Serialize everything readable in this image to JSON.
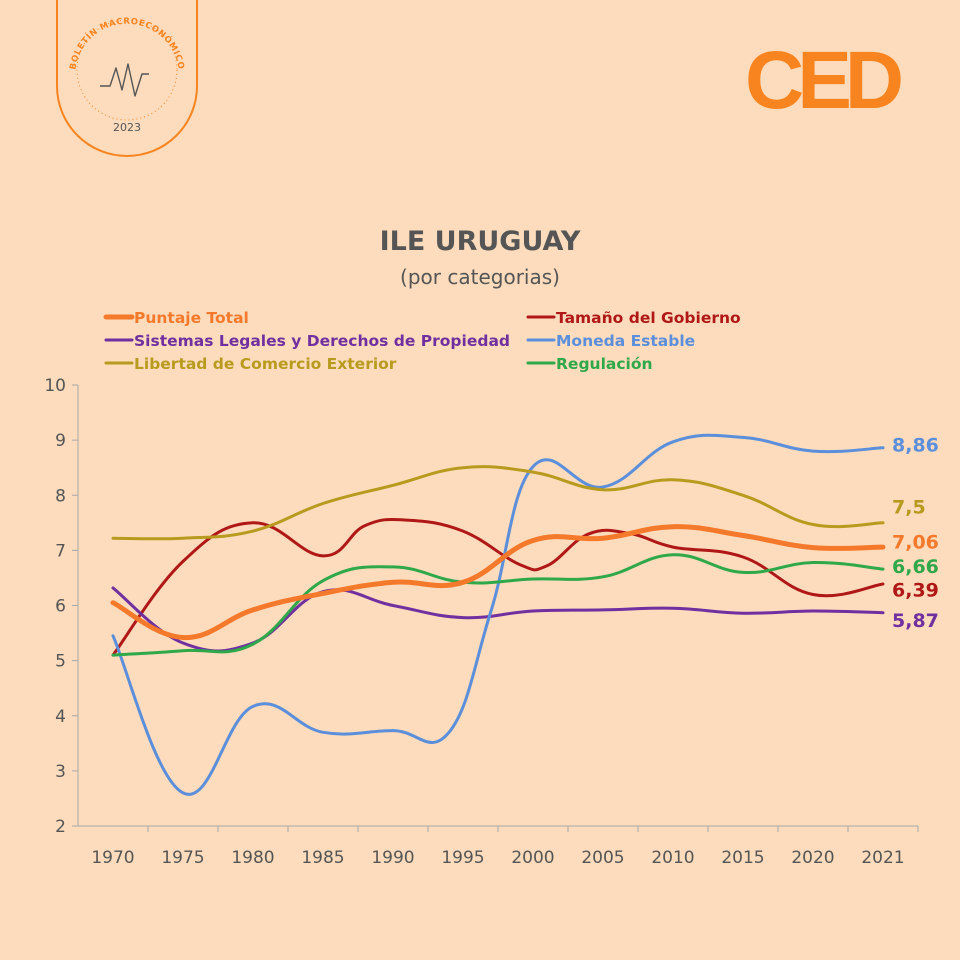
{
  "stamp": {
    "text": "BOLETÍN MACROECONÓMICO",
    "year": "2023"
  },
  "logo": {
    "text": "CED"
  },
  "colors": {
    "background": "#fcdcbc",
    "accent": "#f7841f",
    "axis": "#a8a8a8",
    "text": "#555555"
  },
  "chart_data": {
    "type": "line",
    "title": "ILE URUGUAY",
    "subtitle": "(por categorias)",
    "categories": [
      "1970",
      "1975",
      "1980",
      "1985",
      "1990",
      "1995",
      "2000",
      "2005",
      "2010",
      "2015",
      "2020",
      "2021"
    ],
    "x": [
      1970,
      1975,
      1980,
      1985,
      1990,
      1995,
      2000,
      2005,
      2010,
      2015,
      2020,
      2021
    ],
    "ylim": [
      2,
      10
    ],
    "yticks": [
      "2",
      "3",
      "4",
      "5",
      "6",
      "7",
      "8",
      "9",
      "10"
    ],
    "series": [
      {
        "name": "Puntaje Total",
        "color": "#f4792b",
        "width": 5,
        "x": [
          1970,
          1975,
          1980,
          1985,
          1990,
          1995,
          2000,
          2005,
          2010,
          2015,
          2020,
          2021
        ],
        "values": [
          6.05,
          5.42,
          5.92,
          6.22,
          6.42,
          6.42,
          7.18,
          7.22,
          7.43,
          7.27,
          7.05,
          7.06
        ],
        "end_label": "7,06",
        "label_y": 7.16
      },
      {
        "name": "Tamaño del Gobierno",
        "color": "#b01818",
        "width": 3,
        "x": [
          1970,
          1975,
          1980,
          1985,
          1988,
          1991,
          1995,
          1999,
          2001,
          2004,
          2007,
          2010,
          2015,
          2020,
          2021
        ],
        "values": [
          5.1,
          6.8,
          7.5,
          6.9,
          7.45,
          7.55,
          7.35,
          6.75,
          6.72,
          7.3,
          7.3,
          7.06,
          6.88,
          6.2,
          6.39
        ],
        "end_label": "6,39",
        "label_y": 6.29
      },
      {
        "name": "Sistemas Legales y Derechos de Propiedad",
        "color": "#7030a0",
        "width": 3,
        "x": [
          1970,
          1975,
          1980,
          1985,
          1990,
          1995,
          2000,
          2005,
          2010,
          2015,
          2020,
          2021
        ],
        "values": [
          6.32,
          5.32,
          5.32,
          6.25,
          6.0,
          5.78,
          5.9,
          5.92,
          5.95,
          5.86,
          5.9,
          5.87
        ],
        "end_label": "5,87",
        "label_y": 5.74
      },
      {
        "name": "Moneda Estable",
        "color": "#5b8fdb",
        "width": 3,
        "x": [
          1970,
          1975,
          1980,
          1985,
          1990,
          1994,
          1997,
          2000,
          2005,
          2010,
          2015,
          2020,
          2021
        ],
        "values": [
          5.45,
          2.6,
          4.17,
          3.7,
          3.73,
          3.7,
          5.9,
          8.52,
          8.15,
          8.97,
          9.05,
          8.8,
          8.86
        ],
        "end_label": "8,86",
        "label_y": 8.92
      },
      {
        "name": "Libertad de Comercio Exterior",
        "color": "#b89b1e",
        "width": 3,
        "x": [
          1970,
          1975,
          1980,
          1985,
          1990,
          1995,
          2000,
          2005,
          2010,
          2015,
          2020,
          2021
        ],
        "values": [
          7.22,
          7.22,
          7.35,
          7.85,
          8.18,
          8.5,
          8.42,
          8.1,
          8.28,
          8.0,
          7.47,
          7.5
        ],
        "end_label": "7,5",
        "label_y": 7.8
      },
      {
        "name": "Regulación",
        "color": "#2fa84a",
        "width": 3,
        "x": [
          1970,
          1975,
          1980,
          1985,
          1990,
          1995,
          2000,
          2005,
          2010,
          2015,
          2020,
          2021
        ],
        "values": [
          5.1,
          5.18,
          5.3,
          6.45,
          6.7,
          6.42,
          6.48,
          6.52,
          6.92,
          6.6,
          6.78,
          6.66
        ],
        "end_label": "6,66",
        "label_y": 6.72
      }
    ]
  }
}
